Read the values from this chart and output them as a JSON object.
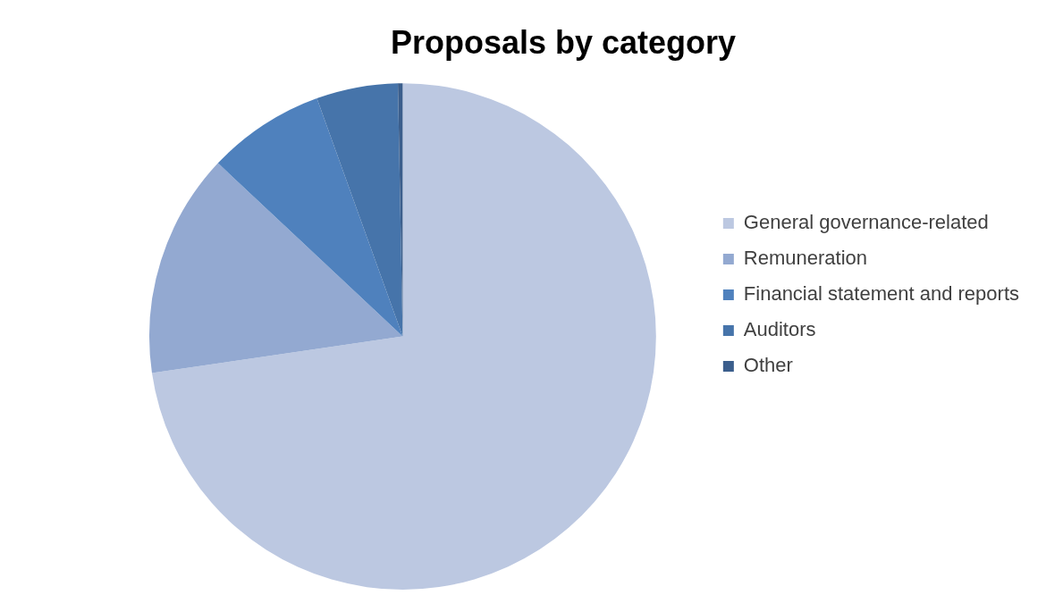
{
  "chart_data": {
    "type": "pie",
    "title": "Proposals by category",
    "categories": [
      "General governance-related",
      "Remuneration",
      "Financial statement and reports",
      "Auditors",
      "Other"
    ],
    "values": [
      72.7,
      14.3,
      7.5,
      5.2,
      0.3
    ],
    "colors": [
      "#bcc8e1",
      "#93a9d1",
      "#4f81bd",
      "#4674aa",
      "#3b5e8c"
    ],
    "legend": "right"
  }
}
